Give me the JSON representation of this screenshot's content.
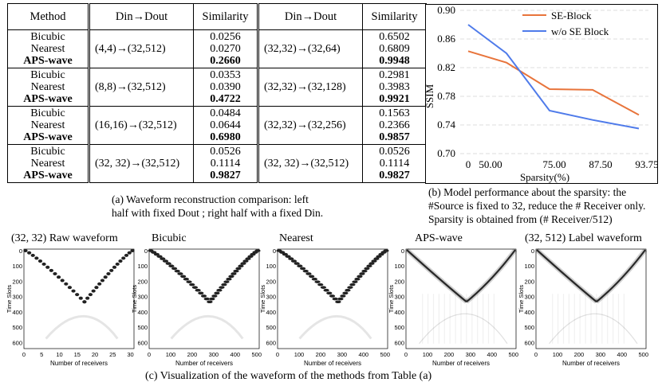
{
  "table": {
    "headers": {
      "method": "Method",
      "din_dout": "Din→Dout",
      "similarity": "Similarity"
    },
    "rows": [
      {
        "methods": [
          "Bicubic",
          "Nearest",
          "APS-wave"
        ],
        "left": {
          "dims": "(4,4)→(32,512)",
          "sims": [
            "0.0256",
            "0.0270",
            "0.2660"
          ]
        },
        "right": {
          "dims": "(32,32)→(32,64)",
          "sims": [
            "0.6502",
            "0.6809",
            "0.9948"
          ]
        }
      },
      {
        "methods": [
          "Bicubic",
          "Nearest",
          "APS-wave"
        ],
        "left": {
          "dims": "(8,8)→(32,512)",
          "sims": [
            "0.0353",
            "0.0390",
            "0.4722"
          ]
        },
        "right": {
          "dims": "(32,32)→(32,128)",
          "sims": [
            "0.2981",
            "0.3983",
            "0.9921"
          ]
        }
      },
      {
        "methods": [
          "Bicubic",
          "Nearest",
          "APS-wave"
        ],
        "left": {
          "dims": "(16,16)→(32,512)",
          "sims": [
            "0.0484",
            "0.0644",
            "0.6980"
          ]
        },
        "right": {
          "dims": "(32,32)→(32,256)",
          "sims": [
            "0.1563",
            "0.2366",
            "0.9857"
          ]
        }
      },
      {
        "methods": [
          "Bicubic",
          "Nearest",
          "APS-wave"
        ],
        "left": {
          "dims": "(32, 32)→(32,512)",
          "sims": [
            "0.0526",
            "0.1114",
            "0.9827"
          ]
        },
        "right": {
          "dims": "(32, 32)→(32,512)",
          "sims": [
            "0.0526",
            "0.1114",
            "0.9827"
          ]
        }
      }
    ]
  },
  "captions": {
    "a_line1": "(a) Waveform reconstruction comparison: left",
    "a_line2": "half with fixed Dout ; right half with a fixed Din.",
    "b_line1": "(b) Model performance about the sparsity: the",
    "b_line2": "#Source is fixed to 32, reduce the # Receiver only.",
    "b_line3": "Sparsity is obtained from (# Receiver/512)",
    "c": "(c) Visualization of the waveform of the methods from Table (a)"
  },
  "chart_data": {
    "type": "line",
    "title": "",
    "xlabel": "Sparsity(%)",
    "ylabel": "SSIM",
    "x": [
      0,
      50.0,
      75.0,
      87.5,
      93.75
    ],
    "x_tick_labels": [
      "50.00",
      "75.00",
      "87.50",
      "93.75"
    ],
    "y_ticks": [
      "0.90",
      "0.86",
      "0.82",
      "0.78",
      "0.74",
      "0.70"
    ],
    "ylim": [
      0.7,
      0.9
    ],
    "grid": "horizontal dashed",
    "legend_position": "top-right",
    "series": [
      {
        "name": "SE-Block",
        "color": "#e8743b",
        "values": [
          0.843,
          0.827,
          0.79,
          0.789,
          0.754
        ]
      },
      {
        "name": "w/o SE Block",
        "color": "#4f7bea",
        "values": [
          0.88,
          0.84,
          0.76,
          0.747,
          0.735
        ]
      }
    ]
  },
  "panels": [
    {
      "title": "(32, 32)   Raw waveform",
      "xticks": [
        "0",
        "5",
        "10",
        "15",
        "20",
        "25",
        "30"
      ],
      "xmax": 31,
      "style": "coarse",
      "xlabel": "Number of receivers"
    },
    {
      "title": "Bicubic",
      "xticks": [
        "0",
        "100",
        "200",
        "300",
        "400",
        "500"
      ],
      "xmax": 512,
      "style": "blocky",
      "xlabel": "Number of receivers"
    },
    {
      "title": "Nearest",
      "xticks": [
        "0",
        "100",
        "200",
        "300",
        "400",
        "500"
      ],
      "xmax": 512,
      "style": "blocky",
      "xlabel": "Number of receivers"
    },
    {
      "title": "APS-wave",
      "xticks": [
        "0",
        "100",
        "200",
        "300",
        "400",
        "500"
      ],
      "xmax": 512,
      "style": "smooth",
      "xlabel": "Number of receivers"
    },
    {
      "title": "(32, 512)   Label waveform",
      "xticks": [
        "0",
        "100",
        "200",
        "300",
        "400",
        "500"
      ],
      "xmax": 512,
      "style": "smooth",
      "xlabel": "Number of receivers"
    }
  ],
  "panel_common": {
    "ylabel": "Time Slots",
    "yticks": [
      "0",
      "100",
      "200",
      "300",
      "400",
      "500",
      "600"
    ]
  }
}
